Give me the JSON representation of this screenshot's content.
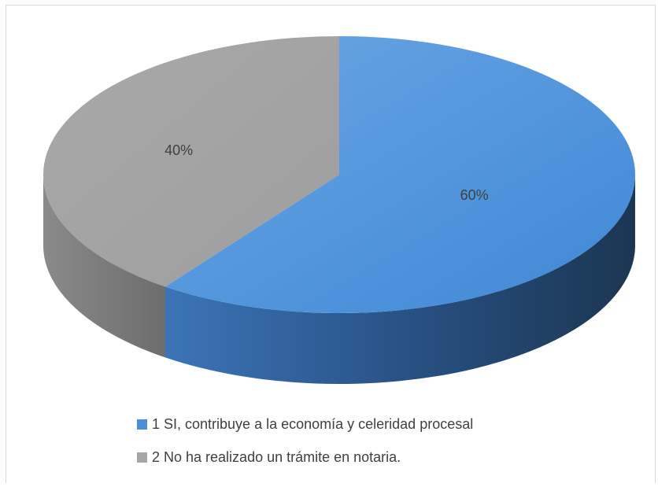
{
  "chart_data": {
    "type": "pie",
    "title": "",
    "style": "3d",
    "slices": [
      {
        "label": "1 SI, contribuye a la economía y celeridad procesal",
        "value": 60,
        "data_label": "60%",
        "color": "#4a90d9"
      },
      {
        "label": "2  No ha realizado un trámite en notaria.",
        "value": 40,
        "data_label": "40%",
        "color": "#a6a6a6"
      }
    ],
    "legend_position": "bottom"
  }
}
